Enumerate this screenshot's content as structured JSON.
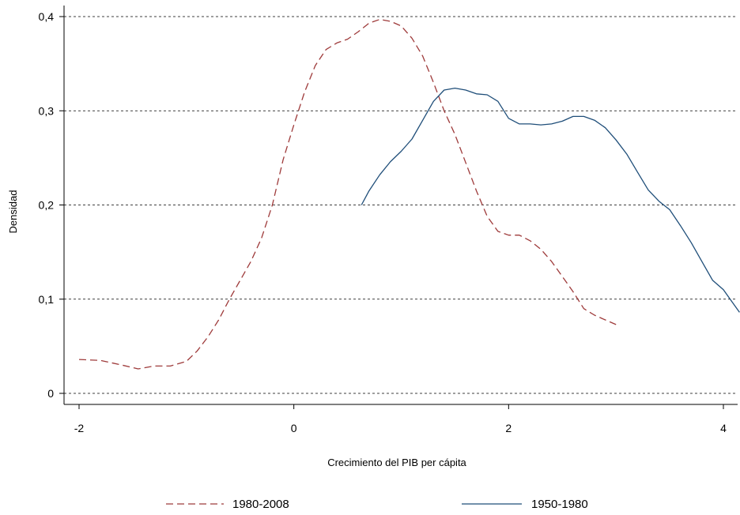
{
  "chart_data": {
    "type": "line",
    "title": "",
    "xlabel": "Crecimiento del PIB per cápita",
    "ylabel": "Densidad",
    "xlim": [
      -2.05,
      4.15
    ],
    "ylim": [
      -0.012,
      0.41
    ],
    "x_ticks": [
      {
        "value": -2,
        "label": "-2"
      },
      {
        "value": 0,
        "label": "0"
      },
      {
        "value": 2,
        "label": "2"
      },
      {
        "value": 4,
        "label": "4"
      }
    ],
    "y_ticks": [
      {
        "value": 0,
        "label": "0"
      },
      {
        "value": 0.1,
        "label": "0,1"
      },
      {
        "value": 0.2,
        "label": "0,2"
      },
      {
        "value": 0.3,
        "label": "0,3"
      },
      {
        "value": 0.4,
        "label": "0,4"
      }
    ],
    "grid": "horizontal dotted",
    "legend_position": "bottom",
    "series": [
      {
        "name": "1980-2008",
        "color": "#9e3a3a",
        "style": "dashed",
        "points": [
          [
            -2.0,
            0.036
          ],
          [
            -1.8,
            0.035
          ],
          [
            -1.6,
            0.03
          ],
          [
            -1.45,
            0.026
          ],
          [
            -1.3,
            0.029
          ],
          [
            -1.15,
            0.029
          ],
          [
            -1.0,
            0.034
          ],
          [
            -0.9,
            0.045
          ],
          [
            -0.8,
            0.06
          ],
          [
            -0.7,
            0.078
          ],
          [
            -0.6,
            0.1
          ],
          [
            -0.5,
            0.12
          ],
          [
            -0.4,
            0.14
          ],
          [
            -0.3,
            0.165
          ],
          [
            -0.2,
            0.2
          ],
          [
            -0.1,
            0.248
          ],
          [
            0.0,
            0.285
          ],
          [
            0.1,
            0.32
          ],
          [
            0.2,
            0.348
          ],
          [
            0.3,
            0.365
          ],
          [
            0.4,
            0.372
          ],
          [
            0.5,
            0.376
          ],
          [
            0.6,
            0.384
          ],
          [
            0.7,
            0.393
          ],
          [
            0.8,
            0.397
          ],
          [
            0.9,
            0.395
          ],
          [
            1.0,
            0.39
          ],
          [
            1.1,
            0.377
          ],
          [
            1.2,
            0.358
          ],
          [
            1.3,
            0.33
          ],
          [
            1.4,
            0.3
          ],
          [
            1.5,
            0.275
          ],
          [
            1.6,
            0.245
          ],
          [
            1.7,
            0.215
          ],
          [
            1.8,
            0.188
          ],
          [
            1.9,
            0.172
          ],
          [
            2.0,
            0.168
          ],
          [
            2.1,
            0.168
          ],
          [
            2.2,
            0.162
          ],
          [
            2.3,
            0.153
          ],
          [
            2.4,
            0.14
          ],
          [
            2.5,
            0.124
          ],
          [
            2.6,
            0.108
          ],
          [
            2.7,
            0.09
          ],
          [
            2.8,
            0.083
          ],
          [
            2.9,
            0.078
          ],
          [
            3.0,
            0.073
          ]
        ]
      },
      {
        "name": "1950-1980",
        "color": "#1f4e79",
        "style": "solid",
        "points": [
          [
            0.63,
            0.2
          ],
          [
            0.7,
            0.215
          ],
          [
            0.8,
            0.232
          ],
          [
            0.9,
            0.246
          ],
          [
            1.0,
            0.257
          ],
          [
            1.1,
            0.27
          ],
          [
            1.2,
            0.29
          ],
          [
            1.3,
            0.31
          ],
          [
            1.4,
            0.322
          ],
          [
            1.5,
            0.324
          ],
          [
            1.6,
            0.322
          ],
          [
            1.7,
            0.318
          ],
          [
            1.8,
            0.317
          ],
          [
            1.9,
            0.31
          ],
          [
            2.0,
            0.292
          ],
          [
            2.1,
            0.286
          ],
          [
            2.2,
            0.286
          ],
          [
            2.3,
            0.285
          ],
          [
            2.4,
            0.286
          ],
          [
            2.5,
            0.289
          ],
          [
            2.6,
            0.294
          ],
          [
            2.7,
            0.294
          ],
          [
            2.8,
            0.29
          ],
          [
            2.9,
            0.282
          ],
          [
            3.0,
            0.269
          ],
          [
            3.1,
            0.254
          ],
          [
            3.2,
            0.235
          ],
          [
            3.3,
            0.216
          ],
          [
            3.4,
            0.204
          ],
          [
            3.5,
            0.195
          ],
          [
            3.6,
            0.178
          ],
          [
            3.7,
            0.16
          ],
          [
            3.8,
            0.14
          ],
          [
            3.9,
            0.12
          ],
          [
            4.0,
            0.11
          ],
          [
            4.1,
            0.094
          ],
          [
            4.15,
            0.086
          ]
        ]
      }
    ]
  }
}
